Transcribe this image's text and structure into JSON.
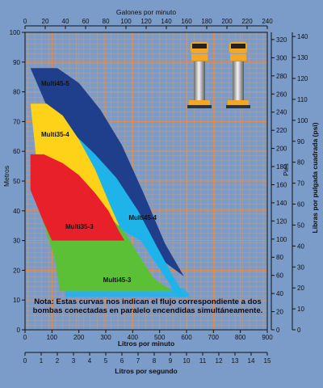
{
  "chart_data": {
    "type": "area",
    "axes": {
      "bottom": {
        "label": "Litros por minuto",
        "ticks": [
          0,
          100,
          200,
          300,
          400,
          500,
          600,
          700,
          800,
          900
        ],
        "range": [
          0,
          900
        ]
      },
      "bottom2": {
        "label": "Litros por segundo",
        "ticks": [
          0,
          1,
          2,
          3,
          4,
          5,
          6,
          7,
          8,
          9,
          10,
          11,
          12,
          13,
          14,
          15
        ],
        "range": [
          0,
          15
        ]
      },
      "top": {
        "label": "Galones por minuto",
        "ticks": [
          0,
          20,
          40,
          60,
          80,
          100,
          120,
          140,
          160,
          180,
          200,
          220,
          240
        ],
        "range": [
          0,
          240
        ]
      },
      "left": {
        "label": "Metros",
        "ticks": [
          0,
          10,
          20,
          30,
          40,
          50,
          60,
          70,
          80,
          90,
          100
        ],
        "range": [
          0,
          100
        ]
      },
      "right1": {
        "label": "Pies",
        "ticks": [
          0,
          20,
          40,
          60,
          80,
          100,
          120,
          140,
          160,
          180,
          200,
          220,
          240,
          260,
          280,
          300,
          320
        ],
        "range": [
          0,
          328
        ]
      },
      "right2": {
        "label": "Libras por pulgada cuadrada (psi)",
        "ticks": [
          0,
          10,
          20,
          30,
          40,
          50,
          60,
          70,
          80,
          90,
          100,
          110,
          120,
          130,
          140
        ],
        "range": [
          0,
          142
        ]
      }
    },
    "grid": true,
    "series": [
      {
        "name": "Multi45-5",
        "color": "#1f3f8c",
        "labelAt": [
          60,
          82
        ],
        "upper": [
          [
            20,
            88
          ],
          [
            120,
            88
          ],
          [
            200,
            83
          ],
          [
            280,
            74
          ],
          [
            360,
            62
          ],
          [
            440,
            46
          ],
          [
            520,
            29
          ],
          [
            590,
            18
          ],
          [
            620,
            16
          ]
        ],
        "lower": [
          [
            620,
            16
          ],
          [
            470,
            26
          ],
          [
            350,
            38
          ],
          [
            200,
            50
          ],
          [
            20,
            88
          ]
        ]
      },
      {
        "name": "Multi35-4",
        "color": "#ffd21a",
        "labelAt": [
          60,
          65
        ],
        "upper": [
          [
            20,
            76
          ],
          [
            80,
            76
          ],
          [
            140,
            72
          ],
          [
            200,
            64
          ],
          [
            260,
            54
          ],
          [
            320,
            41
          ],
          [
            350,
            35
          ]
        ],
        "lower": [
          [
            350,
            35
          ],
          [
            230,
            36
          ],
          [
            120,
            40
          ],
          [
            60,
            42
          ],
          [
            20,
            76
          ]
        ]
      },
      {
        "name": "Multi45-4",
        "color": "#1eb4e9",
        "labelAt": [
          385,
          37
        ],
        "upper": [
          [
            180,
            66
          ],
          [
            260,
            59
          ],
          [
            340,
            51
          ],
          [
            420,
            40
          ],
          [
            490,
            28
          ],
          [
            550,
            18
          ],
          [
            590,
            12
          ],
          [
            600,
            11
          ],
          [
            570,
            11
          ],
          [
            430,
            30
          ],
          [
            350,
            34
          ]
        ],
        "lower": [
          [
            350,
            34
          ],
          [
            200,
            55
          ],
          [
            180,
            66
          ]
        ]
      },
      {
        "name": "Multi35-3",
        "color": "#e8202a",
        "labelAt": [
          150,
          34
        ],
        "upper": [
          [
            20,
            59
          ],
          [
            70,
            59
          ],
          [
            140,
            56
          ],
          [
            200,
            52
          ],
          [
            260,
            46
          ],
          [
            310,
            40
          ],
          [
            350,
            33
          ],
          [
            370,
            30
          ]
        ],
        "lower": [
          [
            370,
            30
          ],
          [
            100,
            30
          ],
          [
            70,
            36
          ],
          [
            20,
            47
          ],
          [
            20,
            59
          ]
        ]
      },
      {
        "name": "Multi45-3",
        "color": "#5bc035",
        "labelAt": [
          290,
          16
        ],
        "upper": [
          [
            20,
            50
          ],
          [
            130,
            50
          ],
          [
            210,
            45
          ],
          [
            290,
            40
          ],
          [
            370,
            33
          ],
          [
            430,
            24
          ],
          [
            480,
            17
          ],
          [
            550,
            13
          ]
        ],
        "lower": [
          [
            550,
            13
          ],
          [
            130,
            13
          ],
          [
            110,
            24
          ],
          [
            20,
            50
          ]
        ]
      }
    ],
    "extra_band": {
      "color": "#2eb0e6",
      "points": [
        [
          150,
          14
        ],
        [
          590,
          14
        ],
        [
          610,
          12
        ],
        [
          610,
          11
        ],
        [
          150,
          11
        ]
      ]
    },
    "note": "Nota: Estas curvas nos indican el flujo correspondiente a dos bombas conectadas en paralelo encendidas simultáneamente."
  }
}
